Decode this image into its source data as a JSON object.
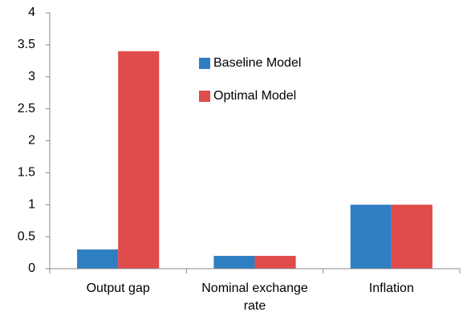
{
  "chart_data": {
    "type": "bar",
    "categories": [
      "Output gap",
      "Nominal exchange rate",
      "Inflation"
    ],
    "series": [
      {
        "name": "Baseline Model",
        "color": "#2e7ec2",
        "values": [
          0.3,
          0.2,
          1
        ]
      },
      {
        "name": "Optimal Model",
        "color": "#e04c4c",
        "values": [
          3.4,
          0.2,
          1
        ]
      }
    ],
    "ylim": [
      0,
      4
    ],
    "yticks": [
      0,
      0.5,
      1,
      1.5,
      2,
      2.5,
      3,
      3.5,
      4
    ],
    "grid": false
  }
}
